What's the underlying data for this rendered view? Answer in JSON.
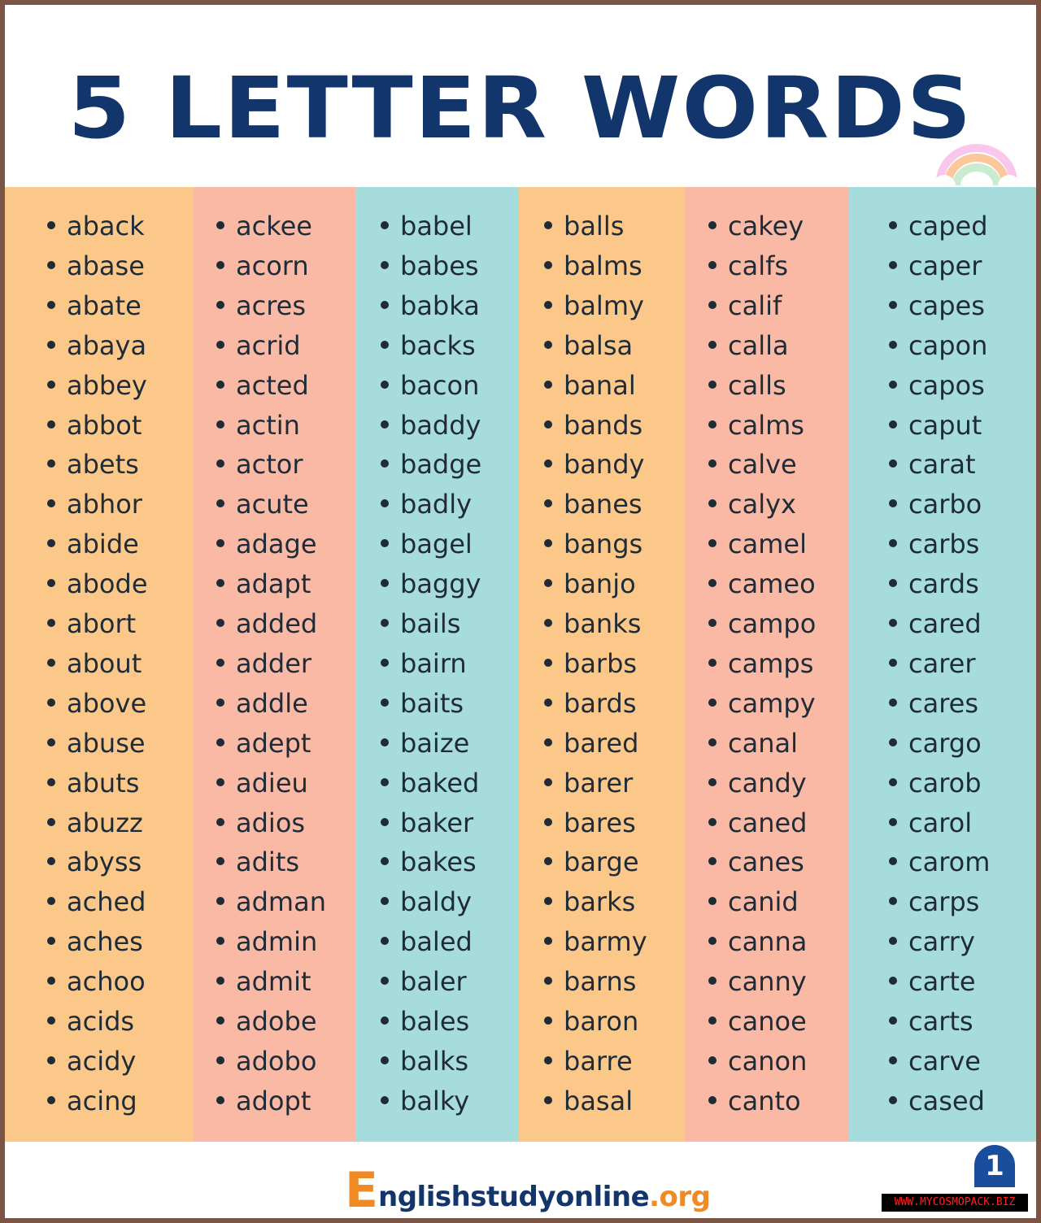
{
  "title": "5 LETTER WORDS",
  "colors": {
    "title": "#12356b",
    "orange": "#fbc889",
    "salmon": "#f9b9a4",
    "teal": "#a7dcdc",
    "border": "#7a5444"
  },
  "columns": [
    {
      "color": "orange",
      "words": [
        "aback",
        "abase",
        "abate",
        "abaya",
        "abbey",
        "abbot",
        "abets",
        "abhor",
        "abide",
        "abode",
        "abort",
        "about",
        "above",
        "abuse",
        "abuts",
        "abuzz",
        "abyss",
        "ached",
        "aches",
        "achoo",
        "acids",
        "acidy",
        "acing"
      ]
    },
    {
      "color": "salmon",
      "words": [
        "ackee",
        "acorn",
        "acres",
        "acrid",
        "acted",
        "actin",
        "actor",
        "acute",
        "adage",
        "adapt",
        "added",
        "adder",
        "addle",
        "adept",
        "adieu",
        "adios",
        "adits",
        "adman",
        "admin",
        "admit",
        "adobe",
        "adobo",
        "adopt"
      ]
    },
    {
      "color": "teal",
      "words": [
        "babel",
        "babes",
        "babka",
        "backs",
        "bacon",
        "baddy",
        "badge",
        "badly",
        "bagel",
        "baggy",
        "bails",
        "bairn",
        "baits",
        "baize",
        "baked",
        "baker",
        "bakes",
        "baldy",
        "baled",
        "baler",
        "bales",
        "balks",
        "balky"
      ]
    },
    {
      "color": "orange",
      "words": [
        "balls",
        "balms",
        "balmy",
        "balsa",
        "banal",
        "bands",
        "bandy",
        "banes",
        "bangs",
        "banjo",
        "banks",
        "barbs",
        "bards",
        "bared",
        "barer",
        "bares",
        "barge",
        "barks",
        "barmy",
        "barns",
        "baron",
        "barre",
        "basal"
      ]
    },
    {
      "color": "salmon",
      "words": [
        "cakey",
        "calfs",
        "calif",
        "calla",
        "calls",
        "calms",
        "calve",
        "calyx",
        "camel",
        "cameo",
        "campo",
        "camps",
        "campy",
        "canal",
        "candy",
        "caned",
        "canes",
        "canid",
        "canna",
        "canny",
        "canoe",
        "canon",
        "canto"
      ]
    },
    {
      "color": "teal",
      "words": [
        "caped",
        "caper",
        "capes",
        "capon",
        "capos",
        "caput",
        "carat",
        "carbo",
        "carbs",
        "cards",
        "cared",
        "carer",
        "cares",
        "cargo",
        "carob",
        "carol",
        "carom",
        "carps",
        "carry",
        "carte",
        "carts",
        "carve",
        "cased"
      ]
    }
  ],
  "footer": {
    "logo_initial": "E",
    "logo_text": "nglishstudyonline",
    "logo_tld": ".org",
    "page_number": "1"
  },
  "watermark": "WWW.MYCOSMOPACK.BIZ"
}
